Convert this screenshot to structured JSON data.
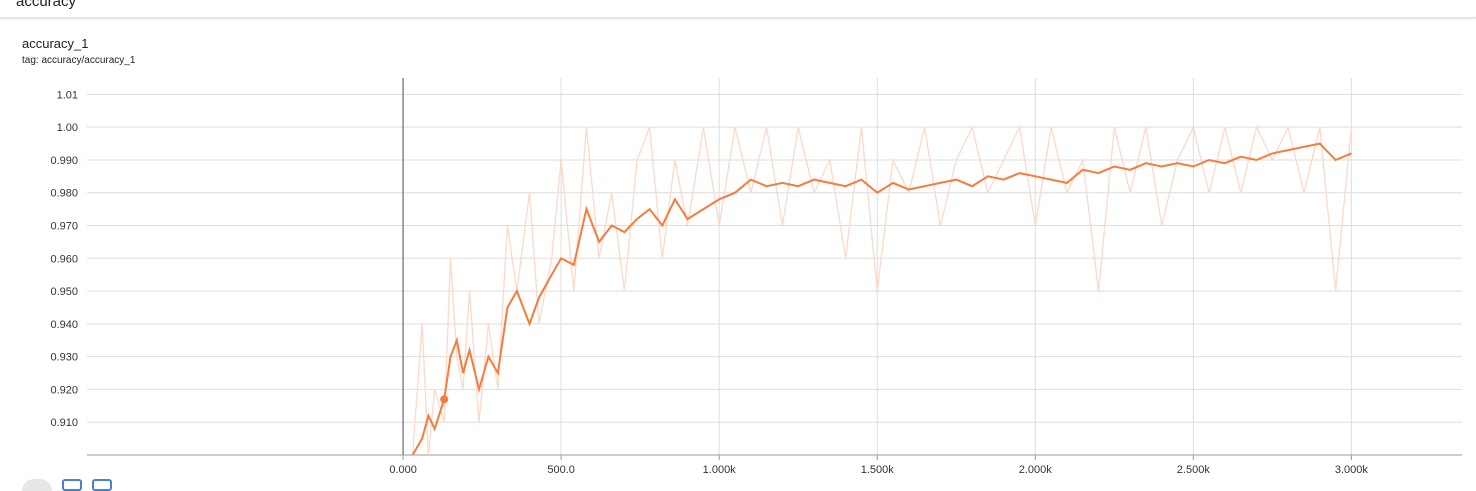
{
  "header": {
    "section_title": "accuracy"
  },
  "card": {
    "title": "accuracy_1",
    "tag": "tag: accuracy/accuracy_1"
  },
  "colors": {
    "smoothed": "#f57c3c",
    "raw": "#fcd9c9",
    "grid": "#dddddd",
    "axis": "#999999"
  },
  "icons": [
    "fit-domain-icon",
    "toggle-log-icon",
    "download-icon"
  ],
  "chart_data": {
    "type": "line",
    "title": "accuracy_1",
    "xlabel": "",
    "ylabel": "",
    "xlim": [
      -1000,
      3350
    ],
    "ylim": [
      0.9,
      1.015
    ],
    "grid": true,
    "xticks": [
      {
        "v": 0,
        "label": "0.000"
      },
      {
        "v": 500,
        "label": "500.0"
      },
      {
        "v": 1000,
        "label": "1.000k"
      },
      {
        "v": 1500,
        "label": "1.500k"
      },
      {
        "v": 2000,
        "label": "2.000k"
      },
      {
        "v": 2500,
        "label": "2.500k"
      },
      {
        "v": 3000,
        "label": "3.000k"
      }
    ],
    "yticks": [
      {
        "v": 0.91,
        "label": "0.910"
      },
      {
        "v": 0.92,
        "label": "0.920"
      },
      {
        "v": 0.93,
        "label": "0.930"
      },
      {
        "v": 0.94,
        "label": "0.940"
      },
      {
        "v": 0.95,
        "label": "0.950"
      },
      {
        "v": 0.96,
        "label": "0.960"
      },
      {
        "v": 0.97,
        "label": "0.970"
      },
      {
        "v": 0.98,
        "label": "0.980"
      },
      {
        "v": 0.99,
        "label": "0.990"
      },
      {
        "v": 1.0,
        "label": "1.00"
      },
      {
        "v": 1.01,
        "label": "1.01"
      }
    ],
    "series": [
      {
        "role": "smoothed",
        "x": [
          30,
          60,
          80,
          100,
          130,
          150,
          170,
          190,
          210,
          240,
          270,
          300,
          330,
          360,
          400,
          430,
          470,
          500,
          540,
          580,
          620,
          660,
          700,
          740,
          780,
          820,
          860,
          900,
          950,
          1000,
          1050,
          1100,
          1150,
          1200,
          1250,
          1300,
          1350,
          1400,
          1450,
          1500,
          1550,
          1600,
          1650,
          1700,
          1750,
          1800,
          1850,
          1900,
          1950,
          2000,
          2050,
          2100,
          2150,
          2200,
          2250,
          2300,
          2350,
          2400,
          2450,
          2500,
          2550,
          2600,
          2650,
          2700,
          2750,
          2800,
          2850,
          2900,
          2950,
          3000
        ],
        "y": [
          0.9,
          0.905,
          0.912,
          0.908,
          0.917,
          0.93,
          0.935,
          0.925,
          0.932,
          0.92,
          0.93,
          0.925,
          0.945,
          0.95,
          0.94,
          0.948,
          0.955,
          0.96,
          0.958,
          0.975,
          0.965,
          0.97,
          0.968,
          0.972,
          0.975,
          0.97,
          0.978,
          0.972,
          0.975,
          0.978,
          0.98,
          0.984,
          0.982,
          0.983,
          0.982,
          0.984,
          0.983,
          0.982,
          0.984,
          0.98,
          0.983,
          0.981,
          0.982,
          0.983,
          0.984,
          0.982,
          0.985,
          0.984,
          0.986,
          0.985,
          0.984,
          0.983,
          0.987,
          0.986,
          0.988,
          0.987,
          0.989,
          0.988,
          0.989,
          0.988,
          0.99,
          0.989,
          0.991,
          0.99,
          0.992,
          0.993,
          0.994,
          0.995,
          0.99,
          0.992
        ]
      },
      {
        "role": "raw",
        "x": [
          30,
          60,
          80,
          100,
          130,
          150,
          170,
          190,
          210,
          240,
          270,
          300,
          330,
          360,
          400,
          430,
          470,
          500,
          540,
          580,
          620,
          660,
          700,
          740,
          780,
          820,
          860,
          900,
          950,
          1000,
          1050,
          1100,
          1150,
          1200,
          1250,
          1300,
          1350,
          1400,
          1450,
          1500,
          1550,
          1600,
          1650,
          1700,
          1750,
          1800,
          1850,
          1900,
          1950,
          2000,
          2050,
          2100,
          2150,
          2200,
          2250,
          2300,
          2350,
          2400,
          2450,
          2500,
          2550,
          2600,
          2650,
          2700,
          2750,
          2800,
          2850,
          2900,
          2950,
          3000
        ],
        "y": [
          0.9,
          0.94,
          0.9,
          0.92,
          0.91,
          0.96,
          0.93,
          0.92,
          0.95,
          0.91,
          0.94,
          0.92,
          0.97,
          0.95,
          0.98,
          0.94,
          0.96,
          0.99,
          0.95,
          1.0,
          0.96,
          0.98,
          0.95,
          0.99,
          1.0,
          0.96,
          0.99,
          0.97,
          1.0,
          0.97,
          1.0,
          0.98,
          1.0,
          0.97,
          1.0,
          0.98,
          0.99,
          0.96,
          1.0,
          0.95,
          0.99,
          0.98,
          1.0,
          0.97,
          0.99,
          1.0,
          0.98,
          0.99,
          1.0,
          0.97,
          1.0,
          0.98,
          0.99,
          0.95,
          1.0,
          0.98,
          1.0,
          0.97,
          0.99,
          1.0,
          0.98,
          1.0,
          0.98,
          1.0,
          0.99,
          1.0,
          0.98,
          1.0,
          0.95,
          1.0
        ]
      }
    ]
  }
}
